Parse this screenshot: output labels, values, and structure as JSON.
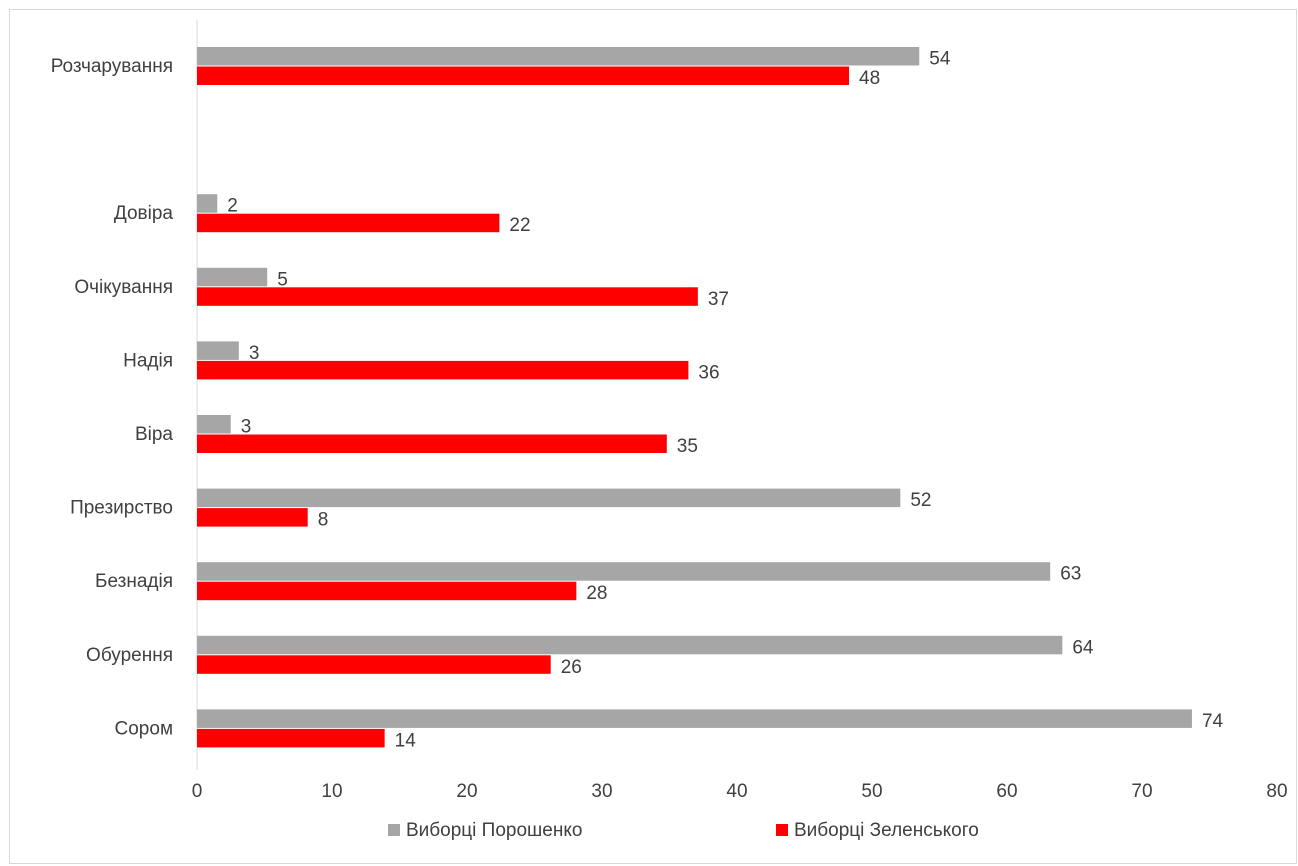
{
  "chart_data": {
    "type": "bar",
    "orientation": "horizontal",
    "categories": [
      "Розчарування",
      "",
      "Довіра",
      "Очікування",
      "Надія",
      "Віра",
      "Презирство",
      "Безнадія",
      "Обурення",
      "Сором"
    ],
    "series": [
      {
        "name": "Виборці Порошенко",
        "color": "#a6a6a6",
        "values": [
          53.5,
          null,
          1.5,
          5.2,
          3.1,
          2.5,
          52.1,
          63.2,
          64.1,
          73.7
        ],
        "labels": [
          "54",
          "",
          "2",
          "5",
          "3",
          "3",
          "52",
          "63",
          "64",
          "74"
        ]
      },
      {
        "name": "Виборці Зеленського",
        "color": "#ff0000",
        "values": [
          48.3,
          null,
          22.4,
          37.1,
          36.4,
          34.8,
          8.2,
          28.1,
          26.2,
          13.9
        ],
        "labels": [
          "48",
          "",
          "22",
          "37",
          "36",
          "35",
          "8",
          "28",
          "26",
          "14"
        ]
      }
    ],
    "xlim": [
      0,
      80
    ],
    "xticks": [
      "0",
      "10",
      "20",
      "30",
      "40",
      "50",
      "60",
      "70",
      "80"
    ],
    "grid": false,
    "legend_position": "bottom"
  }
}
